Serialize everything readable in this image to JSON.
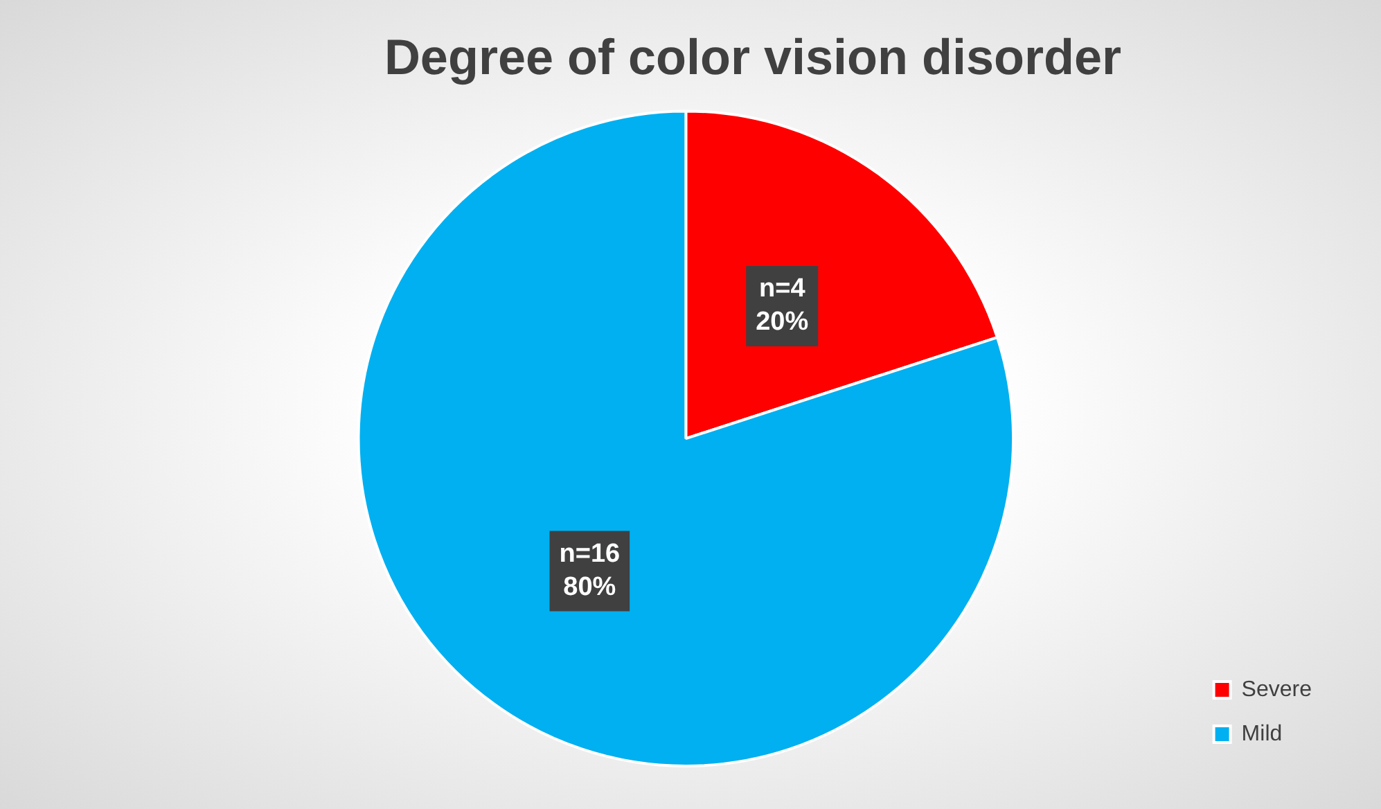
{
  "chart_data": {
    "type": "pie",
    "title": "Degree of color vision disorder",
    "categories": [
      "Severe",
      "Mild"
    ],
    "values": [
      4,
      16
    ],
    "colors": [
      "#ff0000",
      "#00b0f0"
    ],
    "value_labels": [
      "n=4\n20%",
      "n=16\n80%"
    ],
    "legend": "bottom right"
  }
}
